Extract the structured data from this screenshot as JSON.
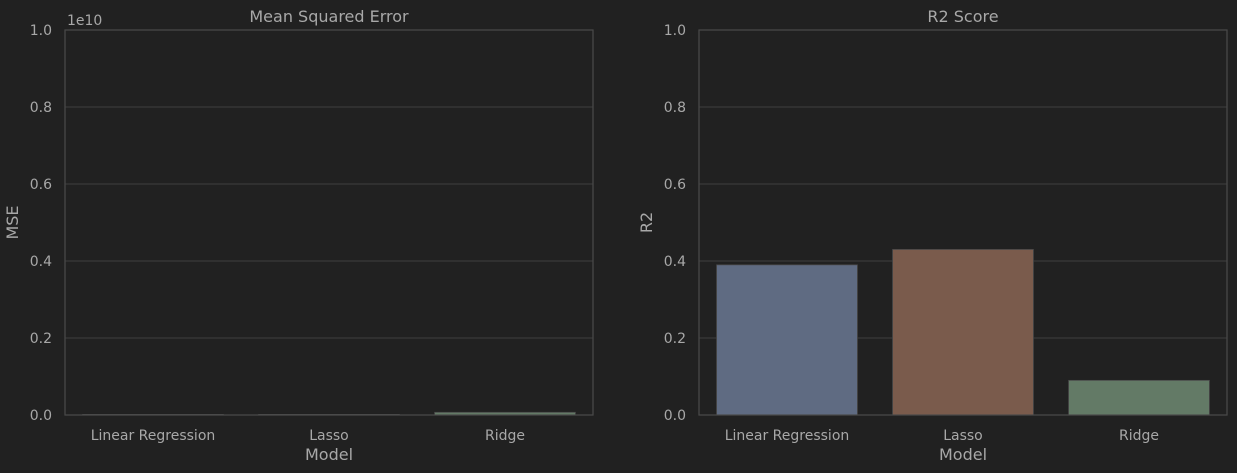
{
  "chart_data": [
    {
      "type": "bar",
      "title": "Mean Squared Error",
      "xlabel": "Model",
      "ylabel": "MSE",
      "offset_text": "1e10",
      "categories": [
        "Linear Regression",
        "Lasso",
        "Ridge"
      ],
      "values": [
        3e-05,
        3e-05,
        0.007
      ],
      "colors": [
        "#5f6b82",
        "#7a5b4c",
        "#637a66"
      ],
      "ylim": [
        0,
        1.0
      ],
      "yticks": [
        "0.0",
        "0.2",
        "0.4",
        "0.6",
        "0.8",
        "1.0"
      ],
      "grid": true
    },
    {
      "type": "bar",
      "title": "R2 Score",
      "xlabel": "Model",
      "ylabel": "R2",
      "categories": [
        "Linear Regression",
        "Lasso",
        "Ridge"
      ],
      "values": [
        0.39,
        0.43,
        0.09
      ],
      "colors": [
        "#5f6b82",
        "#7a5b4c",
        "#637a66"
      ],
      "ylim": [
        0,
        1.0
      ],
      "yticks": [
        "0.0",
        "0.2",
        "0.4",
        "0.6",
        "0.8",
        "1.0"
      ],
      "grid": true
    }
  ]
}
